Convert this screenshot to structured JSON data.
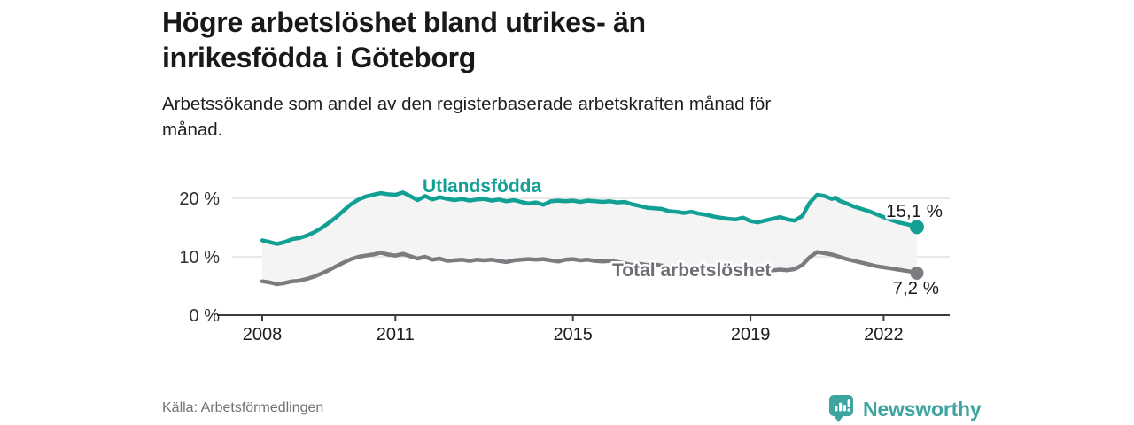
{
  "title": {
    "lines": [
      "Högre arbetslöshet bland utrikes- än",
      "inrikesfödda i Göteborg"
    ]
  },
  "subtitle": {
    "lines": [
      "Arbetssökande som andel av den registerbaserade arbetskraften månad för",
      "månad."
    ]
  },
  "source": "Källa: Arbetsförmedlingen",
  "branding": {
    "name": "Newsworthy",
    "icon": "newsworthy-speech-bubble-bar-chart-icon",
    "color": "#3da4a0"
  },
  "colors": {
    "accent_teal": "#12a095",
    "series_gray": "#7b7c80",
    "label_gray": "#6d6f75",
    "band_fill": "#f4f4f4",
    "grid": "#dcdcdc",
    "axis": "#3c3c3c",
    "text_dark": "#1c1c1c",
    "muted": "#6f7277"
  },
  "chart_data": {
    "type": "line",
    "title": "",
    "xlabel": "",
    "ylabel": "",
    "x_axis": {
      "ticks": [
        2008,
        2011,
        2015,
        2019,
        2022
      ],
      "tick_labels": [
        "2008",
        "2011",
        "2015",
        "2019",
        "2022"
      ],
      "range": [
        2007.9,
        2023.6
      ]
    },
    "y_axis": {
      "ticks": [
        0,
        10,
        20
      ],
      "tick_labels": [
        "0 %",
        "10 %",
        "20 %"
      ],
      "range": [
        0,
        24
      ]
    },
    "grid": "horizontal",
    "legend_position": "inline-labels",
    "band_between_series": true,
    "series": [
      {
        "name": "Utlandsfödda",
        "color": "#12a095",
        "end_value": 15.1,
        "end_label": "15,1 %",
        "points": [
          [
            2008.0,
            12.8
          ],
          [
            2008.17,
            12.5
          ],
          [
            2008.33,
            12.2
          ],
          [
            2008.5,
            12.5
          ],
          [
            2008.67,
            13.0
          ],
          [
            2008.83,
            13.2
          ],
          [
            2009.0,
            13.6
          ],
          [
            2009.17,
            14.2
          ],
          [
            2009.33,
            14.9
          ],
          [
            2009.5,
            15.8
          ],
          [
            2009.67,
            16.8
          ],
          [
            2009.83,
            17.9
          ],
          [
            2010.0,
            19.0
          ],
          [
            2010.17,
            19.8
          ],
          [
            2010.33,
            20.3
          ],
          [
            2010.5,
            20.6
          ],
          [
            2010.67,
            20.9
          ],
          [
            2010.83,
            20.7
          ],
          [
            2011.0,
            20.6
          ],
          [
            2011.17,
            21.0
          ],
          [
            2011.33,
            20.4
          ],
          [
            2011.5,
            19.7
          ],
          [
            2011.67,
            20.4
          ],
          [
            2011.83,
            19.8
          ],
          [
            2012.0,
            20.2
          ],
          [
            2012.17,
            19.9
          ],
          [
            2012.33,
            19.7
          ],
          [
            2012.5,
            19.9
          ],
          [
            2012.67,
            19.6
          ],
          [
            2012.83,
            19.8
          ],
          [
            2013.0,
            19.9
          ],
          [
            2013.17,
            19.6
          ],
          [
            2013.33,
            19.8
          ],
          [
            2013.5,
            19.5
          ],
          [
            2013.67,
            19.7
          ],
          [
            2013.83,
            19.4
          ],
          [
            2014.0,
            19.1
          ],
          [
            2014.17,
            19.3
          ],
          [
            2014.33,
            18.9
          ],
          [
            2014.5,
            19.5
          ],
          [
            2014.67,
            19.6
          ],
          [
            2014.83,
            19.5
          ],
          [
            2015.0,
            19.6
          ],
          [
            2015.17,
            19.4
          ],
          [
            2015.33,
            19.6
          ],
          [
            2015.5,
            19.5
          ],
          [
            2015.67,
            19.4
          ],
          [
            2015.83,
            19.5
          ],
          [
            2016.0,
            19.3
          ],
          [
            2016.17,
            19.4
          ],
          [
            2016.33,
            19.0
          ],
          [
            2016.5,
            18.7
          ],
          [
            2016.67,
            18.4
          ],
          [
            2016.83,
            18.3
          ],
          [
            2017.0,
            18.2
          ],
          [
            2017.17,
            17.8
          ],
          [
            2017.33,
            17.7
          ],
          [
            2017.5,
            17.5
          ],
          [
            2017.67,
            17.7
          ],
          [
            2017.83,
            17.4
          ],
          [
            2018.0,
            17.2
          ],
          [
            2018.17,
            16.9
          ],
          [
            2018.33,
            16.7
          ],
          [
            2018.5,
            16.5
          ],
          [
            2018.67,
            16.4
          ],
          [
            2018.83,
            16.7
          ],
          [
            2019.0,
            16.1
          ],
          [
            2019.17,
            15.9
          ],
          [
            2019.33,
            16.2
          ],
          [
            2019.5,
            16.5
          ],
          [
            2019.67,
            16.8
          ],
          [
            2019.83,
            16.4
          ],
          [
            2020.0,
            16.2
          ],
          [
            2020.17,
            17.0
          ],
          [
            2020.33,
            19.2
          ],
          [
            2020.5,
            20.6
          ],
          [
            2020.67,
            20.4
          ],
          [
            2020.83,
            19.9
          ],
          [
            2020.92,
            20.1
          ],
          [
            2021.0,
            19.6
          ],
          [
            2021.17,
            19.1
          ],
          [
            2021.33,
            18.6
          ],
          [
            2021.5,
            18.2
          ],
          [
            2021.67,
            17.8
          ],
          [
            2021.83,
            17.3
          ],
          [
            2022.0,
            16.8
          ],
          [
            2022.17,
            16.3
          ],
          [
            2022.33,
            15.9
          ],
          [
            2022.5,
            15.6
          ],
          [
            2022.67,
            15.3
          ],
          [
            2022.75,
            15.1
          ]
        ]
      },
      {
        "name": "Total arbetslöshet",
        "color": "#7b7c80",
        "end_value": 7.2,
        "end_label": "7,2 %",
        "points": [
          [
            2008.0,
            5.8
          ],
          [
            2008.17,
            5.6
          ],
          [
            2008.33,
            5.3
          ],
          [
            2008.5,
            5.5
          ],
          [
            2008.67,
            5.8
          ],
          [
            2008.83,
            5.9
          ],
          [
            2009.0,
            6.2
          ],
          [
            2009.17,
            6.6
          ],
          [
            2009.33,
            7.1
          ],
          [
            2009.5,
            7.7
          ],
          [
            2009.67,
            8.4
          ],
          [
            2009.83,
            9.0
          ],
          [
            2010.0,
            9.6
          ],
          [
            2010.17,
            10.0
          ],
          [
            2010.33,
            10.2
          ],
          [
            2010.5,
            10.4
          ],
          [
            2010.67,
            10.7
          ],
          [
            2010.83,
            10.4
          ],
          [
            2011.0,
            10.2
          ],
          [
            2011.17,
            10.5
          ],
          [
            2011.33,
            10.1
          ],
          [
            2011.5,
            9.7
          ],
          [
            2011.67,
            10.0
          ],
          [
            2011.83,
            9.5
          ],
          [
            2012.0,
            9.7
          ],
          [
            2012.17,
            9.3
          ],
          [
            2012.33,
            9.4
          ],
          [
            2012.5,
            9.5
          ],
          [
            2012.67,
            9.3
          ],
          [
            2012.83,
            9.5
          ],
          [
            2013.0,
            9.4
          ],
          [
            2013.17,
            9.5
          ],
          [
            2013.33,
            9.3
          ],
          [
            2013.5,
            9.1
          ],
          [
            2013.67,
            9.4
          ],
          [
            2013.83,
            9.5
          ],
          [
            2014.0,
            9.6
          ],
          [
            2014.17,
            9.5
          ],
          [
            2014.33,
            9.6
          ],
          [
            2014.5,
            9.4
          ],
          [
            2014.67,
            9.2
          ],
          [
            2014.83,
            9.5
          ],
          [
            2015.0,
            9.6
          ],
          [
            2015.17,
            9.4
          ],
          [
            2015.33,
            9.5
          ],
          [
            2015.5,
            9.3
          ],
          [
            2015.67,
            9.2
          ],
          [
            2015.83,
            9.3
          ],
          [
            2016.0,
            9.1
          ],
          [
            2016.17,
            8.9
          ],
          [
            2016.33,
            8.6
          ],
          [
            2016.5,
            8.8
          ],
          [
            2016.67,
            8.6
          ],
          [
            2016.83,
            8.7
          ],
          [
            2017.0,
            8.5
          ],
          [
            2017.17,
            8.3
          ],
          [
            2017.33,
            8.4
          ],
          [
            2017.5,
            8.2
          ],
          [
            2017.67,
            8.1
          ],
          [
            2017.83,
            8.2
          ],
          [
            2018.0,
            8.0
          ],
          [
            2018.17,
            7.9
          ],
          [
            2018.33,
            7.8
          ],
          [
            2018.5,
            7.9
          ],
          [
            2018.67,
            7.7
          ],
          [
            2018.83,
            7.8
          ],
          [
            2019.0,
            7.6
          ],
          [
            2019.17,
            7.5
          ],
          [
            2019.33,
            7.6
          ],
          [
            2019.5,
            7.7
          ],
          [
            2019.67,
            7.8
          ],
          [
            2019.83,
            7.7
          ],
          [
            2020.0,
            7.9
          ],
          [
            2020.17,
            8.6
          ],
          [
            2020.33,
            9.9
          ],
          [
            2020.5,
            10.8
          ],
          [
            2020.67,
            10.6
          ],
          [
            2020.83,
            10.4
          ],
          [
            2020.92,
            10.2
          ],
          [
            2021.0,
            10.0
          ],
          [
            2021.17,
            9.6
          ],
          [
            2021.33,
            9.3
          ],
          [
            2021.5,
            9.0
          ],
          [
            2021.67,
            8.7
          ],
          [
            2021.83,
            8.4
          ],
          [
            2022.0,
            8.2
          ],
          [
            2022.17,
            8.0
          ],
          [
            2022.33,
            7.8
          ],
          [
            2022.5,
            7.6
          ],
          [
            2022.67,
            7.4
          ],
          [
            2022.75,
            7.2
          ]
        ]
      }
    ]
  }
}
